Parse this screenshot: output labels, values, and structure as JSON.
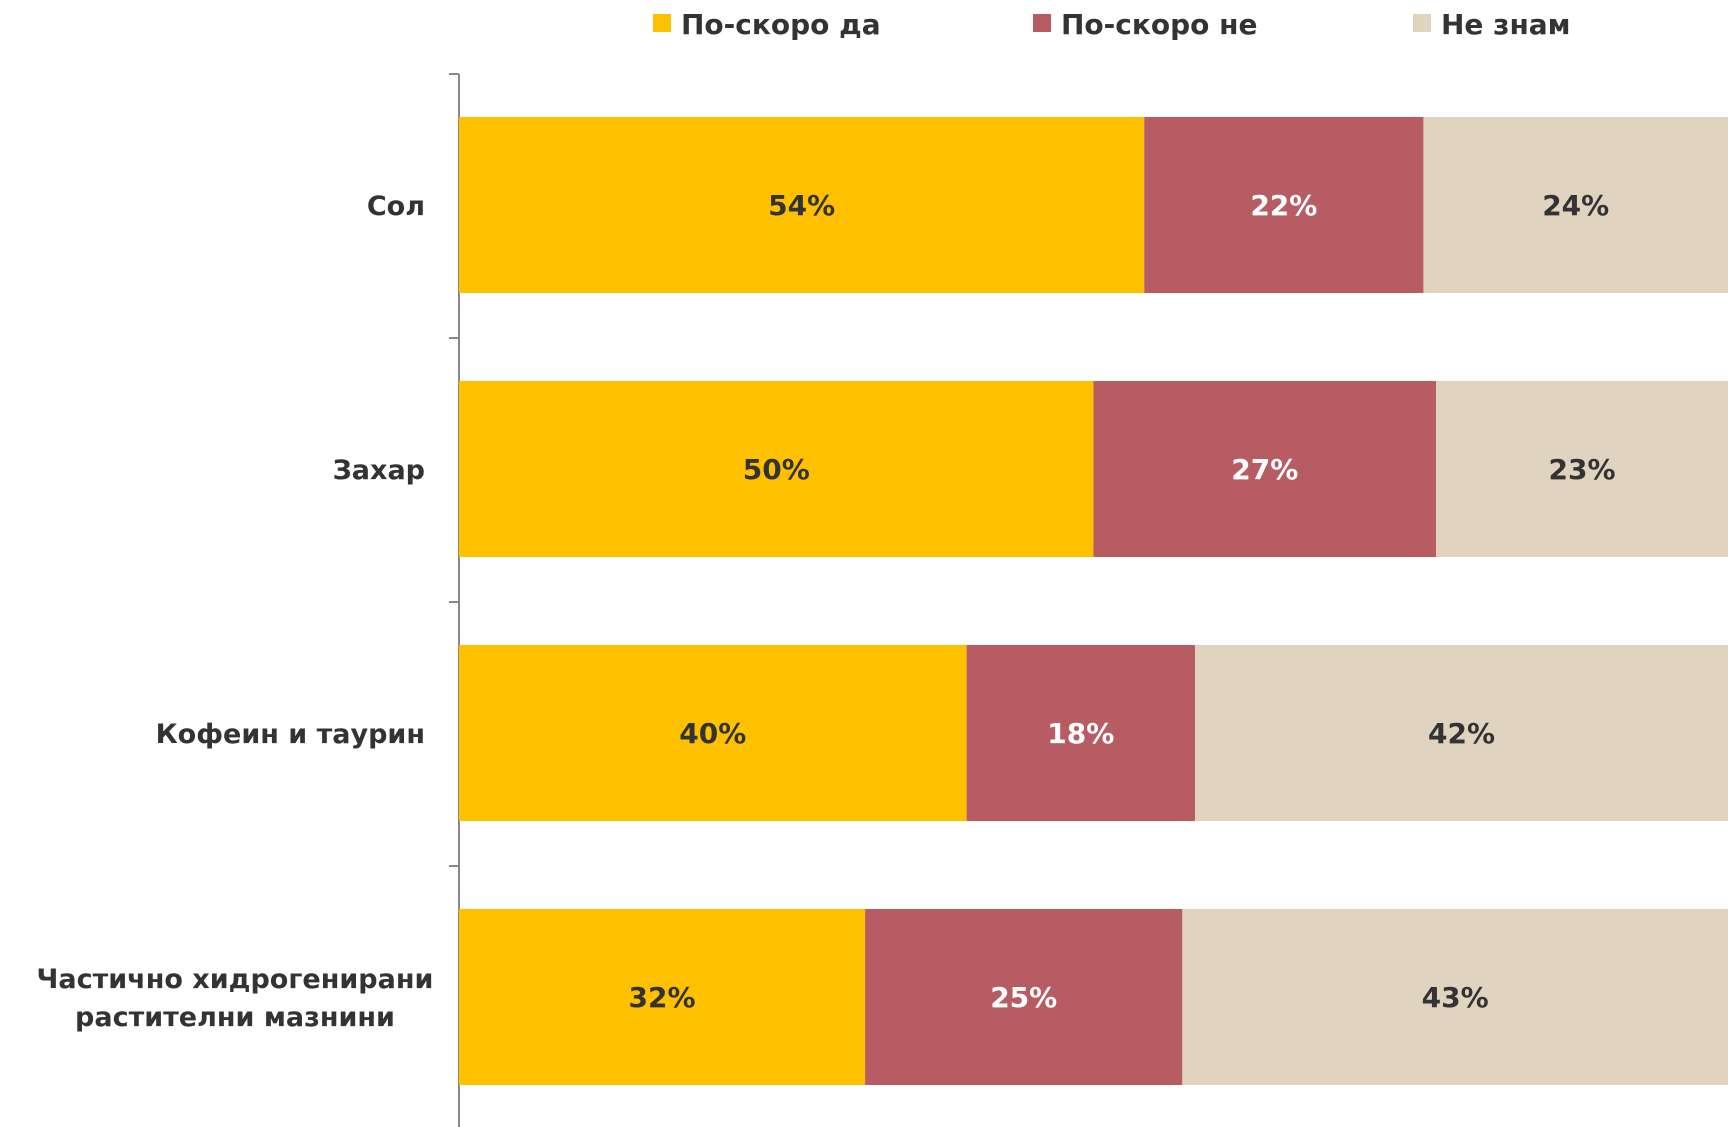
{
  "chart_data": {
    "type": "bar",
    "orientation": "horizontal",
    "stacked": true,
    "percent_stacked": true,
    "categories": [
      "Сол",
      "Захар",
      "Кофеин и таурин",
      "Частично хидрогенирани растителни мазнини"
    ],
    "category_lines": [
      [
        "Сол"
      ],
      [
        "Захар"
      ],
      [
        "Кофеин и таурин"
      ],
      [
        "Частично хидрогенирани",
        "растителни мазнини"
      ]
    ],
    "series": [
      {
        "name": "По-скоро да",
        "color": "#FFC000",
        "label_color": "#333333",
        "values": [
          54,
          50,
          40,
          32
        ]
      },
      {
        "name": "По-скоро не",
        "color": "#B85C63",
        "label_color": "#FFFFFF",
        "values": [
          22,
          27,
          18,
          25
        ]
      },
      {
        "name": "Не знам",
        "color": "#E0D3C0",
        "label_color": "#333333",
        "values": [
          24,
          23,
          42,
          43
        ]
      }
    ],
    "value_suffix": "%",
    "xlim": [
      0,
      100
    ],
    "legend_position": "top",
    "grid": false,
    "title": "",
    "xlabel": "",
    "ylabel": ""
  }
}
